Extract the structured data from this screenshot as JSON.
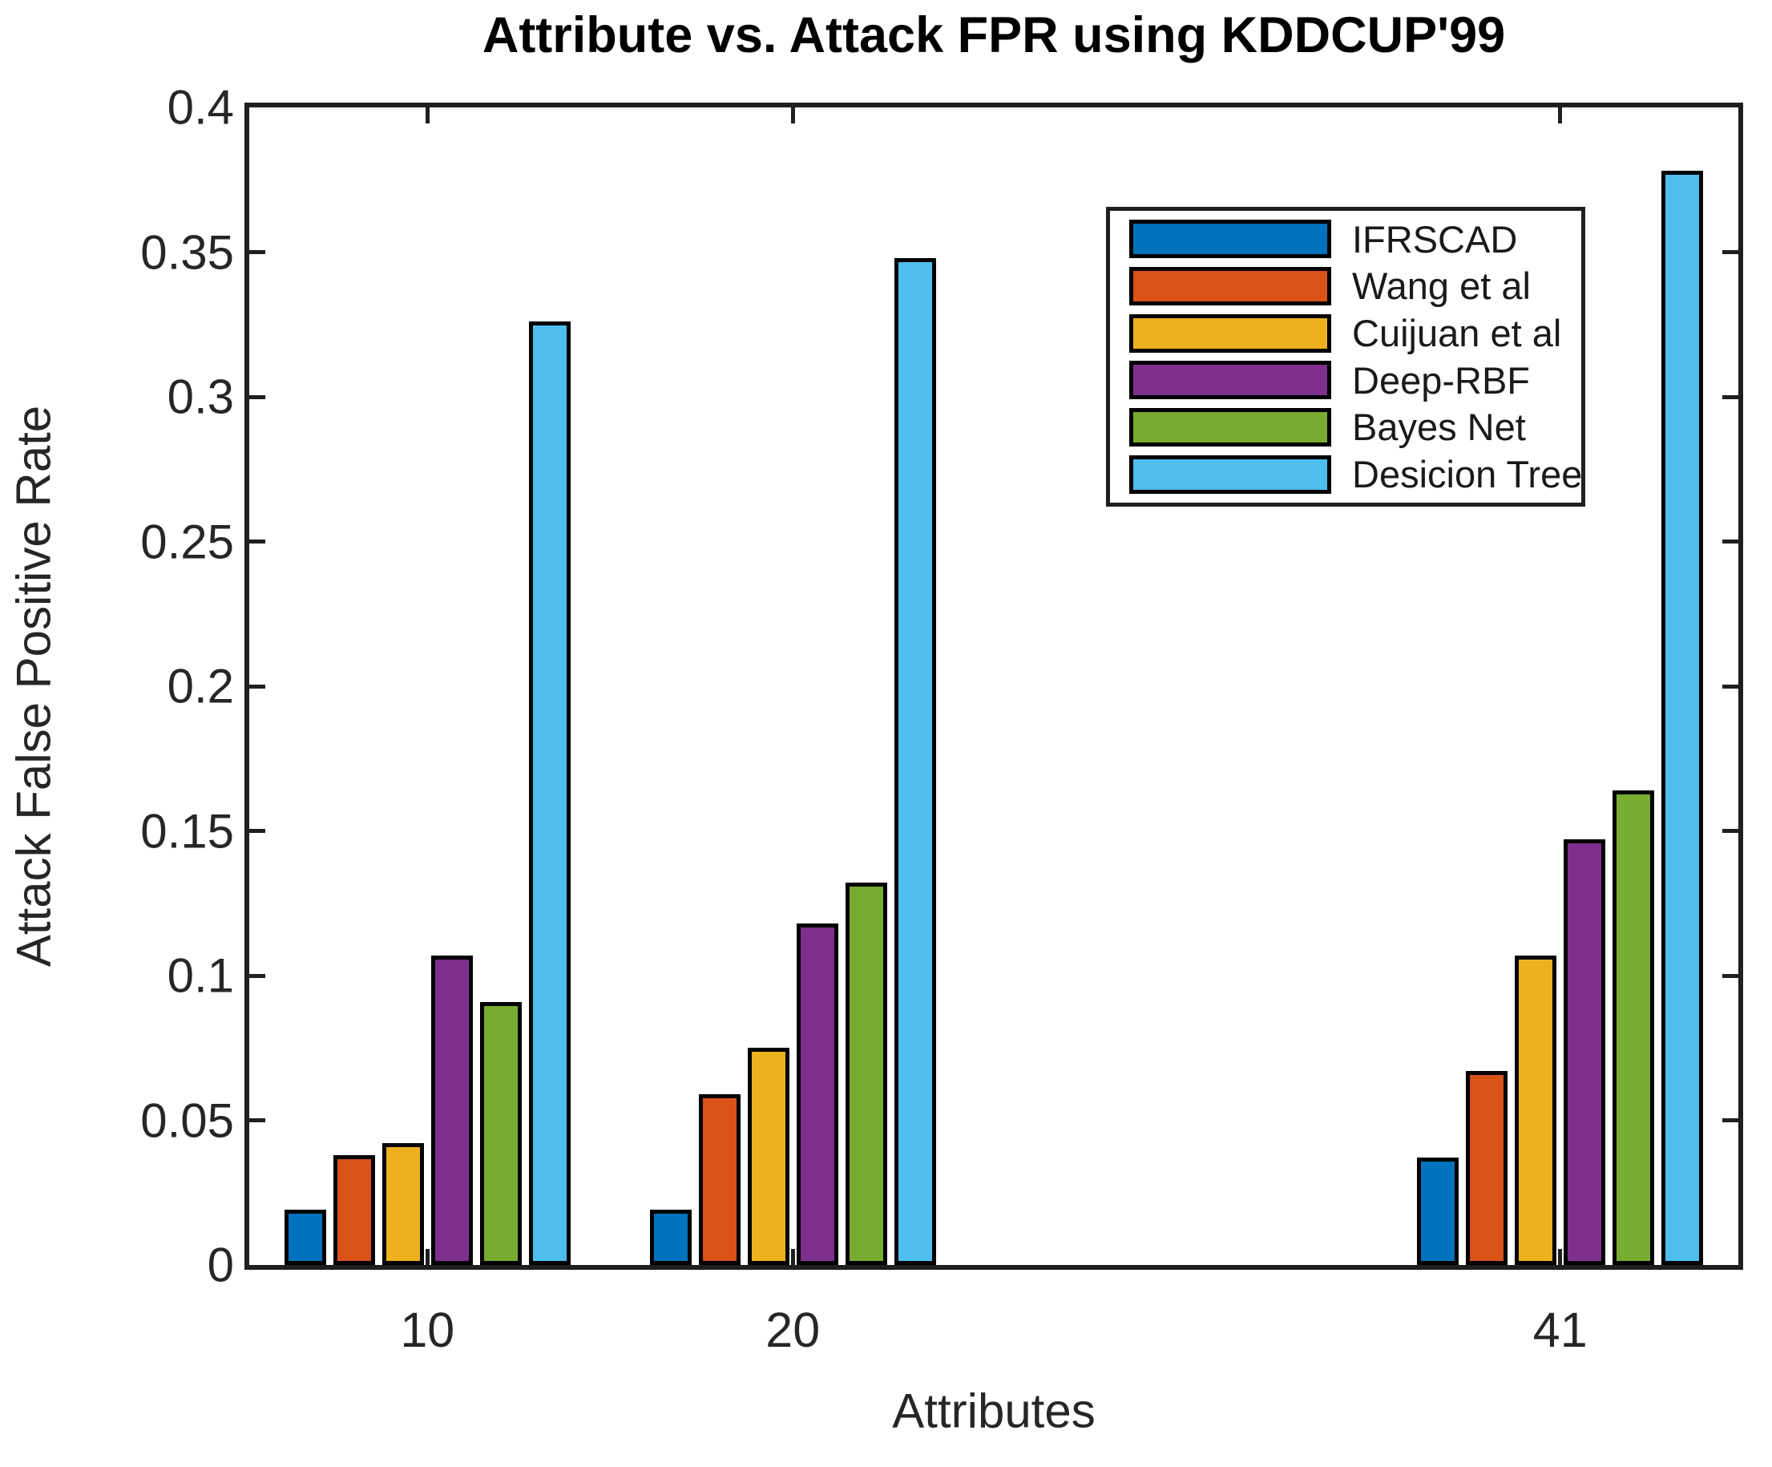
{
  "figure": {
    "title": "Attribute vs. Attack FPR using KDDCUP'99",
    "xlabel": "Attributes",
    "ylabel": "Attack False Positive Rate"
  },
  "chart_data": {
    "type": "bar",
    "title": "Attribute vs. Attack FPR using KDDCUP'99",
    "xlabel": "Attributes",
    "ylabel": "Attack False Positive Rate",
    "categories": [
      10,
      20,
      41
    ],
    "x_tick_labels": [
      "10",
      "20",
      "41"
    ],
    "series": [
      {
        "name": "IFRSCAD",
        "color": "#0072BD",
        "values": [
          0.019,
          0.019,
          0.037
        ]
      },
      {
        "name": "Wang et al",
        "color": "#D95319",
        "values": [
          0.038,
          0.059,
          0.067
        ]
      },
      {
        "name": "Cuijuan et al",
        "color": "#EDB120",
        "values": [
          0.042,
          0.075,
          0.107
        ]
      },
      {
        "name": "Deep-RBF",
        "color": "#7E2F8E",
        "values": [
          0.107,
          0.118,
          0.147
        ]
      },
      {
        "name": "Bayes Net",
        "color": "#77AC30",
        "values": [
          0.091,
          0.132,
          0.164
        ]
      },
      {
        "name": "Desicion Tree",
        "color": "#4DBEEE",
        "values": [
          0.326,
          0.348,
          0.378
        ]
      }
    ],
    "ylim": [
      0,
      0.4
    ],
    "y_ticks": [
      0,
      0.05,
      0.1,
      0.15,
      0.2,
      0.25,
      0.3,
      0.35,
      0.4
    ],
    "y_tick_labels": [
      "0",
      "0.05",
      "0.1",
      "0.15",
      "0.2",
      "0.25",
      "0.3",
      "0.35",
      "0.4"
    ],
    "xlim": [
      5.125,
      45.875
    ],
    "grid": false,
    "legend_position": "upper right",
    "bar_edge_color": "#000000",
    "axis_color": "#1f1f1f"
  }
}
